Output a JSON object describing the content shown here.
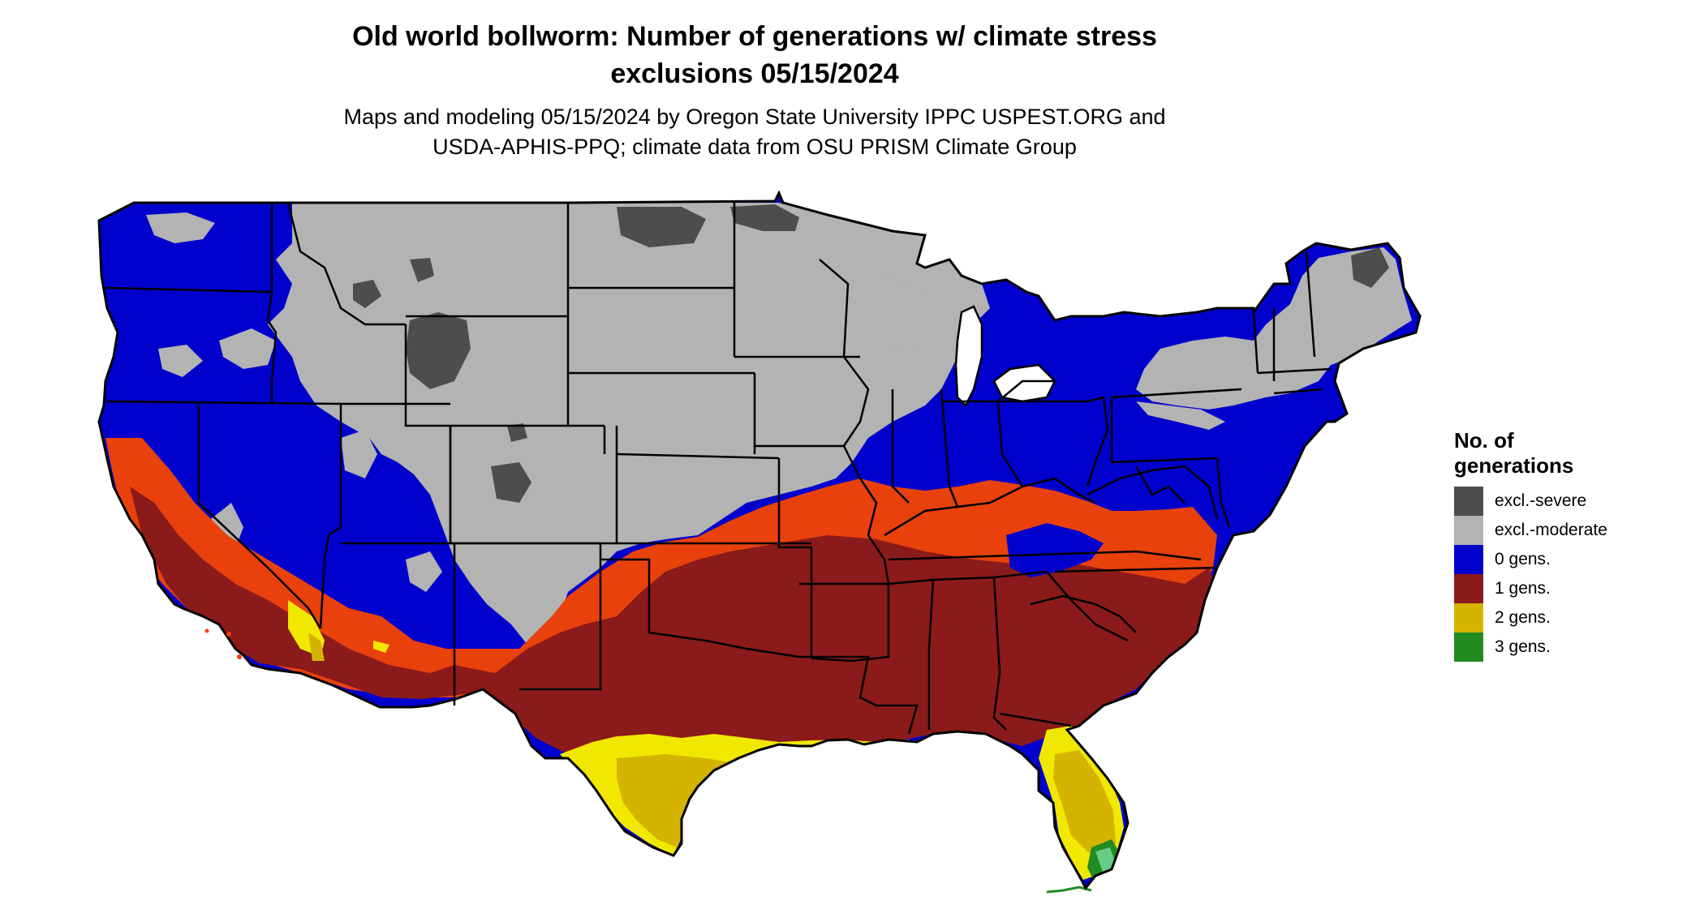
{
  "title": {
    "line1": "Old world bollworm: Number of generations w/ climate stress",
    "line2": "exclusions 05/15/2024"
  },
  "subtitle": {
    "line1": "Maps and modeling 05/15/2024 by Oregon State University IPPC USPEST.ORG and",
    "line2": "USDA-APHIS-PPQ; climate data from OSU PRISM Climate Group"
  },
  "legend": {
    "title_line1": "No. of",
    "title_line2": "generations",
    "items": [
      {
        "label": "excl.-severe",
        "color": "#4d4d4d"
      },
      {
        "label": "excl.-moderate",
        "color": "#b3b3b3"
      },
      {
        "label": "0 gens.",
        "color": "#0000cd"
      },
      {
        "label": "1 gens.",
        "color": "#8b1a1a"
      },
      {
        "label": "2 gens.",
        "color": "#d4b400"
      },
      {
        "label": "3 gens.",
        "color": "#228b22"
      }
    ]
  },
  "colors": {
    "excl_severe": "#4d4d4d",
    "excl_moderate": "#b3b3b3",
    "gen0": "#0000cd",
    "gen1": "#8b1a1a",
    "gen1_edge": "#e8410c",
    "gen2": "#d4b400",
    "gen2_edge": "#f0e800",
    "gen3": "#228b22",
    "border": "#000000"
  }
}
